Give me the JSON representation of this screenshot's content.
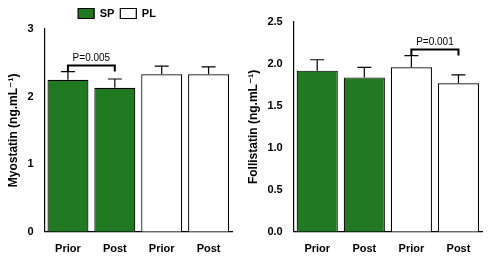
{
  "chart_data": [
    {
      "type": "bar",
      "y_label": "Myostatin (ng.mL⁻¹)",
      "categories": [
        "Prior",
        "Post",
        "Prior",
        "Post"
      ],
      "series": [
        {
          "name": "SP",
          "color": "#217a21",
          "values": [
            2.25,
            2.13,
            null,
            null
          ],
          "errors": [
            0.12,
            0.13,
            null,
            null
          ]
        },
        {
          "name": "PL",
          "color": "#ffffff",
          "values": [
            null,
            null,
            2.33,
            2.33
          ],
          "errors": [
            null,
            null,
            0.12,
            0.11
          ]
        }
      ],
      "ylim": [
        0,
        3
      ],
      "yticks": [
        0,
        1,
        2,
        3
      ],
      "grid": false,
      "legend": "top",
      "annotations": [
        {
          "text": "P=0.005",
          "categories": [
            0,
            1
          ]
        }
      ]
    },
    {
      "type": "bar",
      "y_label": "Follistatin (ng.mL⁻¹)",
      "categories": [
        "Prior",
        "Post",
        "Prior",
        "Post"
      ],
      "series": [
        {
          "name": "SP",
          "color": "#217a21",
          "values": [
            1.92,
            1.84,
            null,
            null
          ],
          "errors": [
            0.13,
            0.12,
            null,
            null
          ]
        },
        {
          "name": "PL",
          "color": "#ffffff",
          "values": [
            null,
            null,
            1.96,
            1.77
          ],
          "errors": [
            null,
            null,
            0.14,
            0.1
          ]
        }
      ],
      "ylim": [
        0,
        2.5
      ],
      "yticks": [
        {
          "value": 0,
          "label": "0.0"
        },
        {
          "value": 0.5,
          "label": "0.5"
        },
        {
          "value": 1,
          "label": "1.0"
        },
        {
          "value": 1.5,
          "label": "1.5"
        },
        {
          "value": 2,
          "label": "2.0"
        },
        {
          "value": 2.5,
          "label": "2.5"
        }
      ],
      "grid": false,
      "annotations": [
        {
          "text": "P=0.001",
          "categories": [
            2,
            3
          ]
        }
      ]
    }
  ]
}
